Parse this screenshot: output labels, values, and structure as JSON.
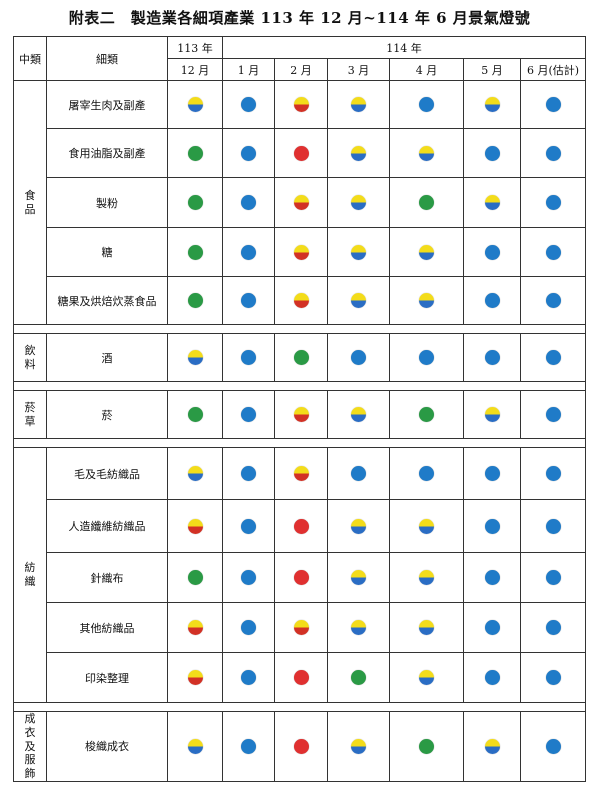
{
  "title": "附表二　製造業各細項產業 113 年 12 月~114 年 6 月景氣燈號",
  "headers": {
    "mid": "中類",
    "sub": "細類",
    "year113": "113 年",
    "year114": "114 年",
    "months": [
      "12 月",
      "1 月",
      "2 月",
      "3 月",
      "4 月",
      "5 月",
      "6 月(估計)"
    ]
  },
  "legend_colors": {
    "red": "#e03030",
    "yellow_red": "#f3dc1a/#d23125",
    "green": "#2a9a45",
    "yellow_blue": "#f3dc1a/#2a6dc4",
    "blue": "#1f7bc8"
  },
  "groups": [
    {
      "name": "食品",
      "rows": [
        {
          "label": "屠宰生肉及副產",
          "signals": [
            "yellow_blue",
            "blue",
            "yellow_red",
            "yellow_blue",
            "blue",
            "yellow_blue",
            "blue"
          ]
        },
        {
          "label": "食用油脂及副產",
          "signals": [
            "green",
            "blue",
            "red",
            "yellow_blue",
            "yellow_blue",
            "blue",
            "blue"
          ]
        },
        {
          "label": "製粉",
          "signals": [
            "green",
            "blue",
            "yellow_red",
            "yellow_blue",
            "green",
            "yellow_blue",
            "blue"
          ]
        },
        {
          "label": "糖",
          "signals": [
            "green",
            "blue",
            "yellow_red",
            "yellow_blue",
            "yellow_blue",
            "blue",
            "blue"
          ]
        },
        {
          "label": "糖果及烘焙炊蒸食品",
          "signals": [
            "green",
            "blue",
            "yellow_red",
            "yellow_blue",
            "yellow_blue",
            "blue",
            "blue"
          ]
        }
      ]
    },
    {
      "name": "飲料",
      "rows": [
        {
          "label": "酒",
          "signals": [
            "yellow_blue",
            "blue",
            "green",
            "blue",
            "blue",
            "blue",
            "blue"
          ]
        }
      ]
    },
    {
      "name": "菸草",
      "rows": [
        {
          "label": "菸",
          "signals": [
            "green",
            "blue",
            "yellow_red",
            "yellow_blue",
            "green",
            "yellow_blue",
            "blue"
          ]
        }
      ]
    },
    {
      "name": "紡織",
      "rows": [
        {
          "label": "毛及毛紡織品",
          "signals": [
            "yellow_blue",
            "blue",
            "yellow_red",
            "blue",
            "blue",
            "blue",
            "blue"
          ]
        },
        {
          "label": "人造纖維紡織品",
          "signals": [
            "yellow_red",
            "blue",
            "red",
            "yellow_blue",
            "yellow_blue",
            "blue",
            "blue"
          ]
        },
        {
          "label": "針織布",
          "signals": [
            "green",
            "blue",
            "red",
            "yellow_blue",
            "yellow_blue",
            "blue",
            "blue"
          ]
        },
        {
          "label": "其他紡織品",
          "signals": [
            "yellow_red",
            "blue",
            "yellow_red",
            "yellow_blue",
            "yellow_blue",
            "blue",
            "blue"
          ]
        },
        {
          "label": "印染整理",
          "signals": [
            "yellow_red",
            "blue",
            "red",
            "green",
            "yellow_blue",
            "blue",
            "blue"
          ]
        }
      ]
    },
    {
      "name": "成衣及服飾",
      "rows": [
        {
          "label": "梭織成衣",
          "signals": [
            "yellow_blue",
            "blue",
            "red",
            "yellow_blue",
            "green",
            "yellow_blue",
            "blue"
          ]
        }
      ]
    }
  ]
}
